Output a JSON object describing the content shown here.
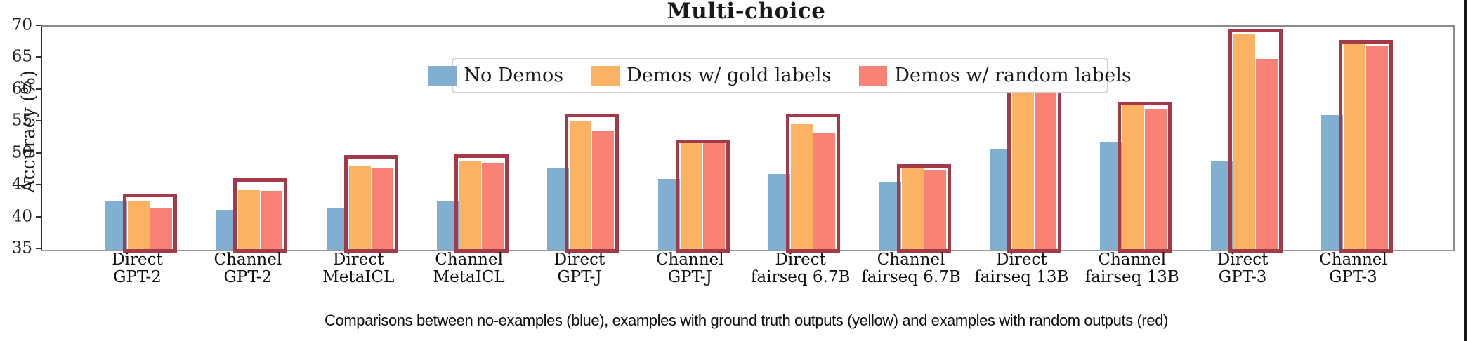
{
  "chart_data": {
    "type": "bar",
    "title": "Multi-choice",
    "ylabel": "Accuracy (%)",
    "ylim": [
      35,
      70
    ],
    "yticks": [
      35,
      40,
      45,
      50,
      55,
      60,
      65,
      70
    ],
    "grid": false,
    "legend_position": "top-center-inside",
    "categories": [
      [
        "Direct",
        "GPT-2"
      ],
      [
        "Channel",
        "GPT-2"
      ],
      [
        "Direct",
        "MetaICL"
      ],
      [
        "Channel",
        "MetaICL"
      ],
      [
        "Direct",
        "GPT-J"
      ],
      [
        "Channel",
        "GPT-J"
      ],
      [
        "Direct",
        "fairseq 6.7B"
      ],
      [
        "Channel",
        "fairseq 6.7B"
      ],
      [
        "Direct",
        "fairseq 13B"
      ],
      [
        "Channel",
        "fairseq 13B"
      ],
      [
        "Direct",
        "GPT-3"
      ],
      [
        "Channel",
        "GPT-3"
      ]
    ],
    "series": [
      {
        "name": "No Demos",
        "color": "#80AFD1",
        "values": [
          42.7,
          41.3,
          41.5,
          42.6,
          47.8,
          46.1,
          46.9,
          45.7,
          50.9,
          51.9,
          49.0,
          56.1
        ]
      },
      {
        "name": "Demos w/ gold labels",
        "color": "#FBB363",
        "values": [
          42.6,
          44.4,
          48.1,
          48.9,
          55.1,
          51.8,
          54.7,
          47.9,
          61.9,
          57.7,
          68.9,
          67.4
        ]
      },
      {
        "name": "Demos w/ random labels",
        "color": "#FA8175",
        "values": [
          41.6,
          44.3,
          47.9,
          48.7,
          53.7,
          51.7,
          53.3,
          47.4,
          60.7,
          57.0,
          64.9,
          66.9
        ]
      }
    ],
    "highlight_boxes": {
      "color": "#A23B47",
      "around_series": [
        "Demos w/ gold labels",
        "Demos w/ random labels"
      ],
      "tops": [
        43.8,
        46.2,
        49.9,
        50.0,
        56.4,
        52.3,
        56.4,
        48.4,
        63.3,
        58.2,
        69.7,
        67.9
      ]
    },
    "caption": "Comparisons between no-examples (blue), examples with ground truth outputs (yellow) and examples with random outputs (red)"
  }
}
